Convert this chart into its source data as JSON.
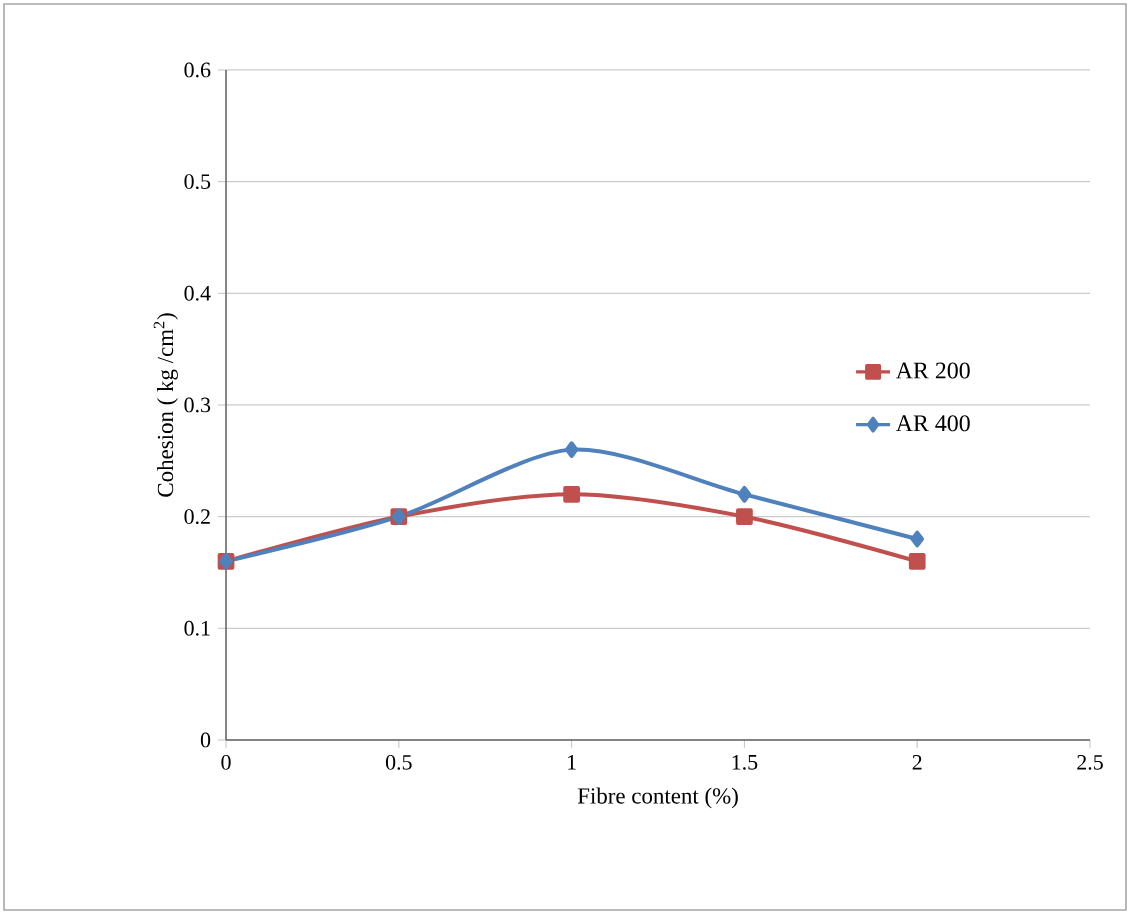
{
  "chart_data": {
    "type": "line",
    "xlabel": "Fibre content (%)",
    "ylabel": "Cohesion ( kg /cm$^{2}$)",
    "x": [
      0,
      0.5,
      1,
      1.5,
      2
    ],
    "series": [
      {
        "name": "AR 200",
        "color": "#c0504d",
        "marker": "square",
        "values": [
          0.16,
          0.2,
          0.22,
          0.2,
          0.16
        ]
      },
      {
        "name": "AR 400",
        "color": "#4f81bd",
        "marker": "diamond",
        "values": [
          0.16,
          0.2,
          0.26,
          0.22,
          0.18
        ]
      }
    ],
    "xlim": [
      0,
      2.5
    ],
    "xticks": [
      0,
      0.5,
      1,
      1.5,
      2,
      2.5
    ],
    "ylim": [
      0,
      0.6
    ],
    "yticks": [
      0,
      0.1,
      0.2,
      0.3,
      0.4,
      0.5,
      0.6
    ],
    "grid": "y",
    "legend": "right",
    "line_style": "solid"
  }
}
